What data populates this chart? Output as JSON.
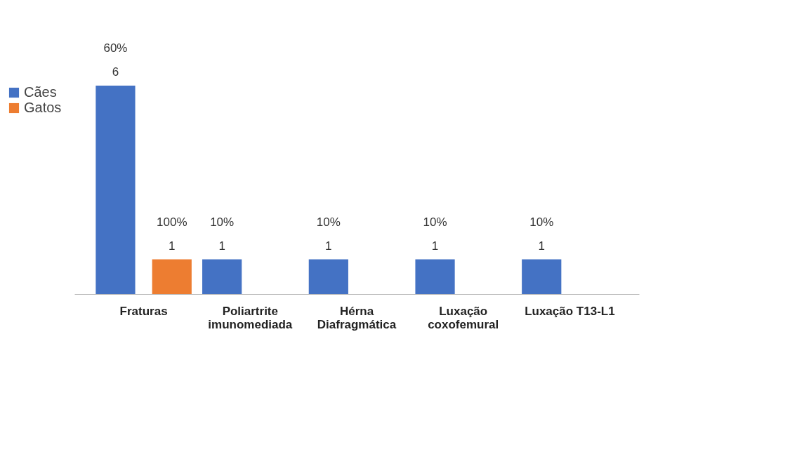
{
  "chart_data": {
    "type": "bar",
    "categories": [
      "Fraturas",
      "Poliartrite\nimunomediada",
      "Hérna\nDiafragmática",
      "Luxação\ncoxofemural",
      "Luxação T13-L1"
    ],
    "series": [
      {
        "name": "Cães",
        "color": "#4472c4",
        "values": [
          6,
          1,
          1,
          1,
          1
        ],
        "value_labels": [
          "60%\n6",
          "10%\n1",
          "10%\n1",
          "10%\n1",
          "10%\n1"
        ]
      },
      {
        "name": "Gatos",
        "color": "#ed7d31",
        "values": [
          1,
          null,
          null,
          null,
          null
        ],
        "value_labels": [
          "100%\n1",
          null,
          null,
          null,
          null
        ]
      }
    ],
    "legend": "left",
    "grid": false
  }
}
